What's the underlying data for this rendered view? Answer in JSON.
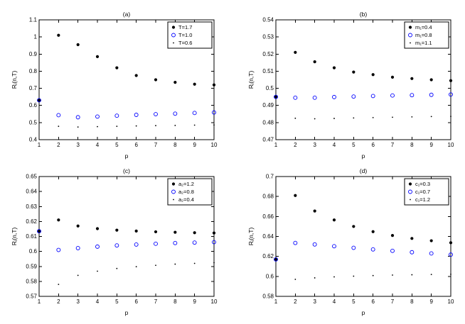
{
  "figure": {
    "background": "#ffffff",
    "axis_color": "#000000",
    "series_black": "#000000",
    "series_blue": "#0000ff"
  },
  "chart_data": [
    {
      "id": "a",
      "type": "scatter",
      "title": "(a)",
      "xlabel": "p",
      "ylabel": "Rⱼ(n,T)",
      "xlim": [
        1,
        10
      ],
      "ylim": [
        0.4,
        1.1
      ],
      "xticks": [
        1,
        2,
        3,
        4,
        5,
        6,
        7,
        8,
        9,
        10
      ],
      "yticks": [
        0.4,
        0.5,
        0.6,
        0.7,
        0.8,
        0.9,
        1,
        1.1
      ],
      "grid": false,
      "legend_position": "top-right",
      "x": [
        1,
        2,
        3,
        4,
        5,
        6,
        7,
        8,
        9,
        10
      ],
      "series": [
        {
          "name": "T=1.7",
          "marker": "filled-dot",
          "color": "#000000",
          "values": [
            0.63,
            1.01,
            0.955,
            0.885,
            0.82,
            0.775,
            0.75,
            0.735,
            0.724,
            0.72
          ]
        },
        {
          "name": "T=1.0",
          "marker": "open-circle",
          "color": "#0000ff",
          "values": [
            0.63,
            0.543,
            0.531,
            0.535,
            0.54,
            0.545,
            0.549,
            0.552,
            0.556,
            0.559
          ]
        },
        {
          "name": "T=0.6",
          "marker": "small-dot",
          "color": "#000000",
          "values": [
            0.63,
            0.478,
            0.474,
            0.476,
            0.478,
            0.48,
            0.482,
            0.483,
            0.485,
            0.486
          ]
        }
      ]
    },
    {
      "id": "b",
      "type": "scatter",
      "title": "(b)",
      "xlabel": "p",
      "ylabel": "Rⱼ(n,T)",
      "xlim": [
        1,
        10
      ],
      "ylim": [
        0.47,
        0.54
      ],
      "xticks": [
        1,
        2,
        3,
        4,
        5,
        6,
        7,
        8,
        9,
        10
      ],
      "yticks": [
        0.47,
        0.48,
        0.49,
        0.5,
        0.51,
        0.52,
        0.53,
        0.54
      ],
      "grid": false,
      "legend_position": "top-right",
      "x": [
        1,
        2,
        3,
        4,
        5,
        6,
        7,
        8,
        9,
        10
      ],
      "series": [
        {
          "name": "m₁=0.4",
          "marker": "filled-dot",
          "color": "#000000",
          "values": [
            0.495,
            0.521,
            0.5155,
            0.512,
            0.5095,
            0.508,
            0.5065,
            0.5057,
            0.505,
            0.5045
          ]
        },
        {
          "name": "m₁=0.8",
          "marker": "open-circle",
          "color": "#0000ff",
          "values": [
            0.495,
            0.4945,
            0.4945,
            0.4949,
            0.4952,
            0.4955,
            0.4958,
            0.496,
            0.4962,
            0.4964
          ]
        },
        {
          "name": "m₁=1.1",
          "marker": "small-dot",
          "color": "#000000",
          "values": [
            0.495,
            0.4825,
            0.4822,
            0.4824,
            0.4827,
            0.4829,
            0.4831,
            0.4833,
            0.4835,
            0.4836
          ]
        }
      ]
    },
    {
      "id": "c",
      "type": "scatter",
      "title": "(c)",
      "xlabel": "p",
      "ylabel": "Rⱼ(n,T)",
      "xlim": [
        1,
        10
      ],
      "ylim": [
        0.57,
        0.65
      ],
      "xticks": [
        1,
        2,
        3,
        4,
        5,
        6,
        7,
        8,
        9,
        10
      ],
      "yticks": [
        0.57,
        0.58,
        0.59,
        0.6,
        0.61,
        0.62,
        0.63,
        0.64,
        0.65
      ],
      "grid": false,
      "legend_position": "top-right",
      "x": [
        1,
        2,
        3,
        4,
        5,
        6,
        7,
        8,
        9,
        10
      ],
      "series": [
        {
          "name": "a₂=1.2",
          "marker": "filled-dot",
          "color": "#000000",
          "values": [
            0.6135,
            0.621,
            0.617,
            0.6152,
            0.6142,
            0.6136,
            0.6131,
            0.6128,
            0.6125,
            0.6123
          ]
        },
        {
          "name": "a₂=0.8",
          "marker": "open-circle",
          "color": "#0000ff",
          "values": [
            0.6135,
            0.601,
            0.6022,
            0.6032,
            0.604,
            0.6046,
            0.6051,
            0.6056,
            0.6059,
            0.6062
          ]
        },
        {
          "name": "a₂=0.4",
          "marker": "small-dot",
          "color": "#000000",
          "values": [
            0.6135,
            0.578,
            0.584,
            0.5868,
            0.5886,
            0.5898,
            0.5907,
            0.5915,
            0.592,
            0.5925
          ]
        }
      ]
    },
    {
      "id": "d",
      "type": "scatter",
      "title": "(d)",
      "xlabel": "p",
      "ylabel": "Rⱼ(n,T)",
      "xlim": [
        1,
        10
      ],
      "ylim": [
        0.58,
        0.7
      ],
      "xticks": [
        1,
        2,
        3,
        4,
        5,
        6,
        7,
        8,
        9,
        10
      ],
      "yticks": [
        0.58,
        0.6,
        0.62,
        0.64,
        0.66,
        0.68,
        0.7
      ],
      "grid": false,
      "legend_position": "top-right",
      "x": [
        1,
        2,
        3,
        4,
        5,
        6,
        7,
        8,
        9,
        10
      ],
      "series": [
        {
          "name": "c₁=0.3",
          "marker": "filled-dot",
          "color": "#000000",
          "values": [
            0.617,
            0.681,
            0.6655,
            0.6565,
            0.65,
            0.6448,
            0.641,
            0.638,
            0.6357,
            0.6337
          ]
        },
        {
          "name": "c₁=0.7",
          "marker": "open-circle",
          "color": "#0000ff",
          "values": [
            0.617,
            0.6335,
            0.632,
            0.6302,
            0.6286,
            0.627,
            0.6256,
            0.6242,
            0.623,
            0.6218
          ]
        },
        {
          "name": "c₁=1.2",
          "marker": "small-dot",
          "color": "#000000",
          "values": [
            0.617,
            0.597,
            0.5985,
            0.5995,
            0.6002,
            0.6008,
            0.6013,
            0.6016,
            0.6019,
            0.6021
          ]
        }
      ]
    }
  ]
}
